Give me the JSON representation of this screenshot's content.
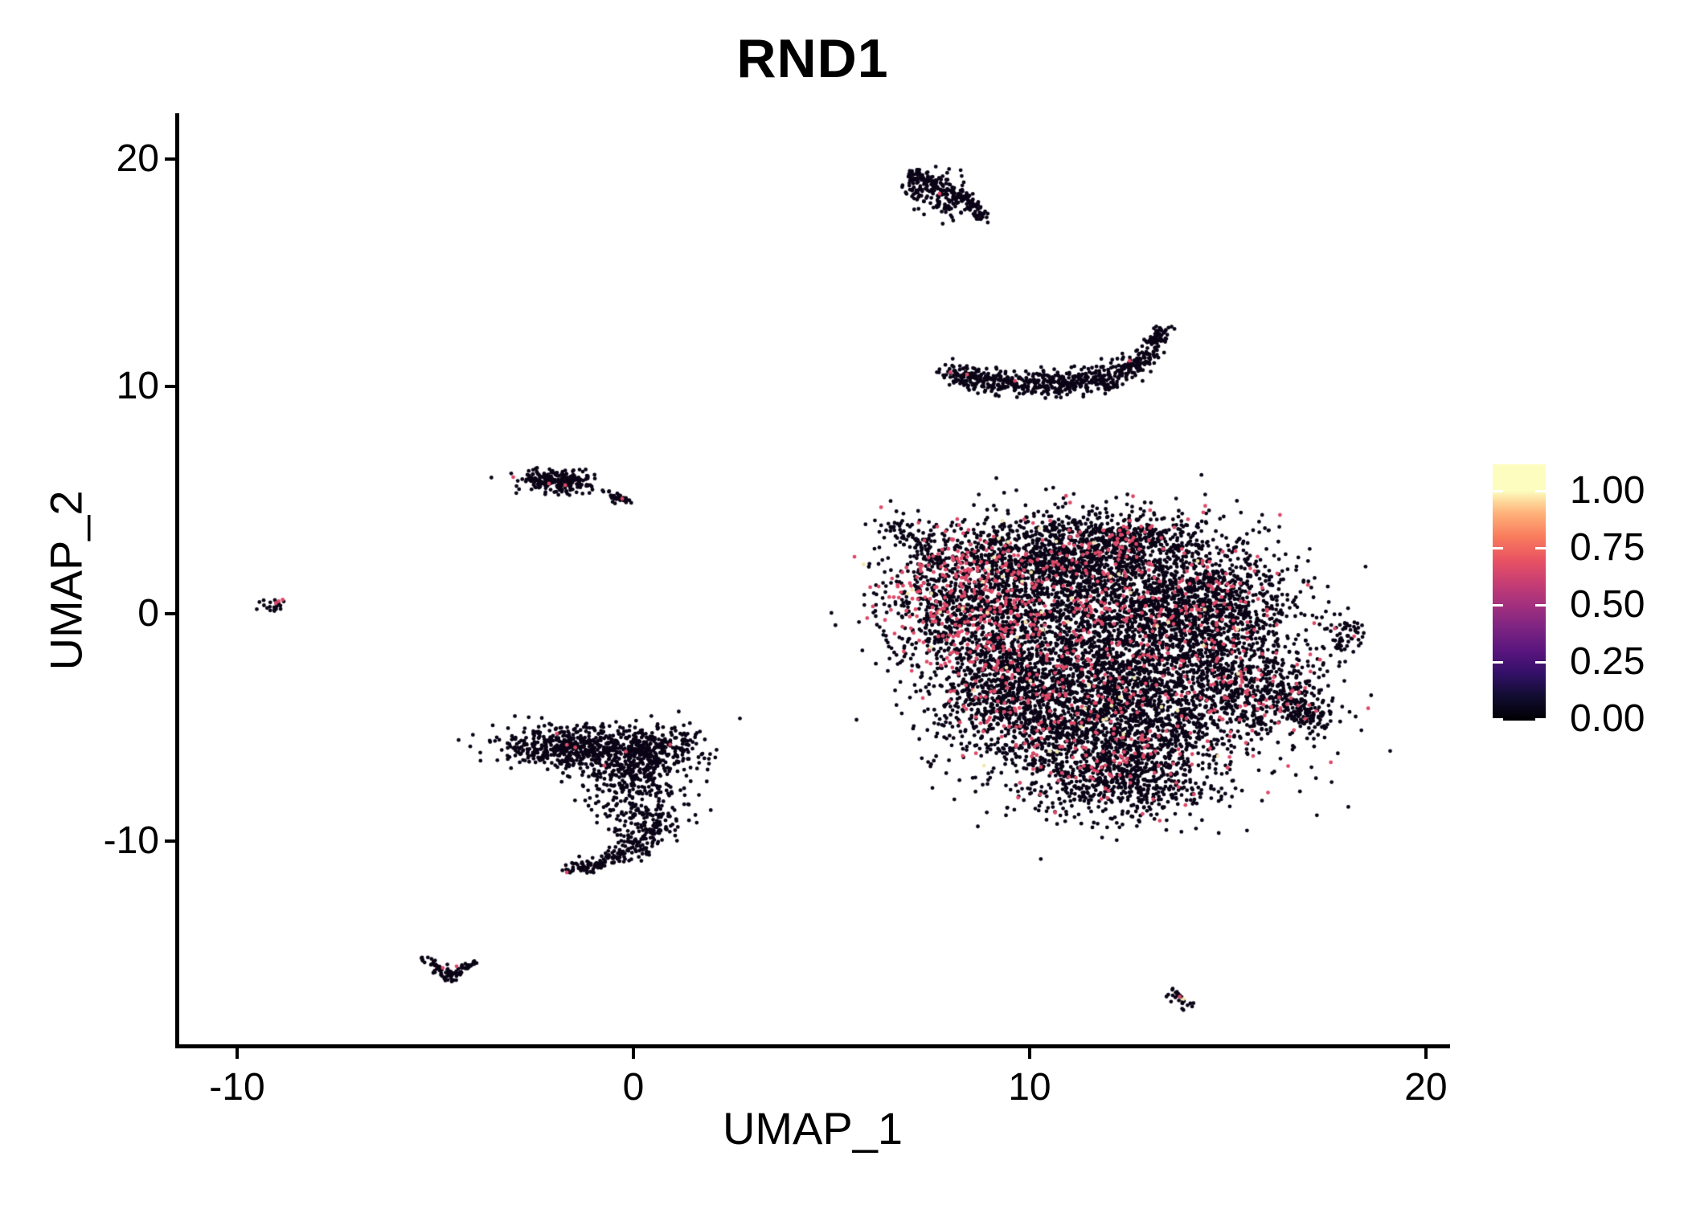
{
  "chart_data": {
    "type": "scatter",
    "title": "RND1",
    "xlabel": "UMAP_1",
    "ylabel": "UMAP_2",
    "xlim": [
      -11.48,
      20.53
    ],
    "ylim": [
      -19.05,
      21.95
    ],
    "x_ticks": [
      {
        "value": -10,
        "label": "-10"
      },
      {
        "value": 0,
        "label": "0"
      },
      {
        "value": 10,
        "label": "10"
      },
      {
        "value": 20,
        "label": "20"
      }
    ],
    "y_ticks": [
      {
        "value": -10,
        "label": "-10"
      },
      {
        "value": 0,
        "label": "0"
      },
      {
        "value": 10,
        "label": "10"
      },
      {
        "value": 20,
        "label": "20"
      }
    ],
    "legend": {
      "bar_value_range": [
        -0.007,
        1.117
      ],
      "ticks": [
        {
          "value": 1.0,
          "label": "1.00"
        },
        {
          "value": 0.75,
          "label": "0.75"
        },
        {
          "value": 0.5,
          "label": "0.50"
        },
        {
          "value": 0.25,
          "label": "0.25"
        },
        {
          "value": 0.0,
          "label": "0.00"
        }
      ],
      "gradient_stops": [
        {
          "value": 0.0,
          "color": "#000004"
        },
        {
          "value": 0.1,
          "color": "#120D31"
        },
        {
          "value": 0.2,
          "color": "#331068"
        },
        {
          "value": 0.3,
          "color": "#5A167E"
        },
        {
          "value": 0.4,
          "color": "#7D2482"
        },
        {
          "value": 0.5,
          "color": "#A3307E"
        },
        {
          "value": 0.6,
          "color": "#C83E73"
        },
        {
          "value": 0.7,
          "color": "#E95462"
        },
        {
          "value": 0.8,
          "color": "#F97C5D"
        },
        {
          "value": 0.9,
          "color": "#FEB078"
        },
        {
          "value": 0.96,
          "color": "#FDDC9E"
        },
        {
          "value": 1.0,
          "color": "#FCFDBF"
        },
        {
          "value": 1.117,
          "color": "#FCFDBF"
        }
      ],
      "tick_dash_color": "#FFFFFF"
    },
    "point_radius": 2.4,
    "point_colors": {
      "low": "#0A0416",
      "mid": "#DE4968",
      "high": "#F2E7AE"
    },
    "seed": 42,
    "clusters": [
      {
        "name": "top-small-cluster",
        "components": [
          {
            "type": "blob",
            "cx": 7.5,
            "cy": 18.75,
            "sx": 0.38,
            "sy": 0.42,
            "n": 110,
            "red": 0.005,
            "cream": 0
          },
          {
            "type": "blob",
            "cx": 7.95,
            "cy": 18.2,
            "sx": 0.28,
            "sy": 0.35,
            "n": 70,
            "red": 0.01,
            "cream": 0
          },
          {
            "type": "blob",
            "cx": 7.15,
            "cy": 19.25,
            "sx": 0.18,
            "sy": 0.18,
            "n": 30,
            "red": 0,
            "cream": 0
          },
          {
            "type": "strip",
            "x1": 8.2,
            "y1": 18.6,
            "x2": 8.85,
            "y2": 17.35,
            "sig": 0.11,
            "n": 70,
            "red": 0,
            "cream": 0
          }
        ]
      },
      {
        "name": "crescent-cluster",
        "components": [
          {
            "type": "strip",
            "x1": 8.0,
            "y1": 10.45,
            "x2": 10.2,
            "y2": 10.05,
            "sig": 0.26,
            "n": 250,
            "red": 0.004,
            "cream": 0
          },
          {
            "type": "strip",
            "x1": 10.2,
            "y1": 10.05,
            "x2": 12.0,
            "y2": 10.3,
            "sig": 0.28,
            "n": 230,
            "red": 0.004,
            "cream": 0
          },
          {
            "type": "strip",
            "x1": 12.0,
            "y1": 10.3,
            "x2": 12.9,
            "y2": 11.2,
            "sig": 0.22,
            "n": 120,
            "red": 0,
            "cream": 0
          },
          {
            "type": "strip",
            "x1": 12.9,
            "y1": 11.2,
            "x2": 13.35,
            "y2": 12.65,
            "sig": 0.16,
            "n": 90,
            "red": 0,
            "cream": 0
          }
        ]
      },
      {
        "name": "main-cluster",
        "components": [
          {
            "type": "strip",
            "x1": 6.4,
            "y1": 4.05,
            "x2": 7.9,
            "y2": 2.45,
            "sig": 0.26,
            "n": 90,
            "red": 0.01,
            "cream": 0
          },
          {
            "type": "blob",
            "cx": 8.35,
            "cy": 0.4,
            "sx": 1.05,
            "sy": 1.45,
            "n": 900,
            "red": 0.28,
            "cream": 0.012
          },
          {
            "type": "blob",
            "cx": 10.8,
            "cy": 2.4,
            "sx": 1.5,
            "sy": 1.05,
            "n": 1300,
            "red": 0.08,
            "cream": 0.006
          },
          {
            "type": "blob",
            "cx": 12.6,
            "cy": 3.5,
            "sx": 0.8,
            "sy": 0.5,
            "n": 240,
            "red": 0.05,
            "cream": 0
          },
          {
            "type": "blob",
            "cx": 11.5,
            "cy": -1.2,
            "sx": 1.95,
            "sy": 1.85,
            "n": 2250,
            "red": 0.09,
            "cream": 0.007
          },
          {
            "type": "blob",
            "cx": 14.3,
            "cy": 0.2,
            "sx": 1.25,
            "sy": 1.65,
            "n": 1350,
            "red": 0.07,
            "cream": 0.004
          },
          {
            "type": "blob",
            "cx": 9.4,
            "cy": -3.4,
            "sx": 0.9,
            "sy": 1.2,
            "n": 500,
            "red": 0.12,
            "cream": 0
          },
          {
            "type": "blob",
            "cx": 12.0,
            "cy": -5.0,
            "sx": 1.9,
            "sy": 1.5,
            "n": 1850,
            "red": 0.09,
            "cream": 0.004
          },
          {
            "type": "blob",
            "cx": 15.7,
            "cy": -3.3,
            "sx": 1.05,
            "sy": 1.05,
            "n": 480,
            "red": 0.1,
            "cream": 0
          },
          {
            "type": "strip",
            "x1": 16.5,
            "y1": -3.5,
            "x2": 17.25,
            "y2": -4.9,
            "sig": 0.28,
            "n": 130,
            "red": 0.12,
            "cream": 0
          },
          {
            "type": "blob",
            "cx": 12.3,
            "cy": -7.5,
            "sx": 1.15,
            "sy": 0.75,
            "n": 420,
            "red": 0.06,
            "cream": 0
          }
        ]
      },
      {
        "name": "far-right-small-cluster",
        "components": [
          {
            "type": "blob",
            "cx": 18.0,
            "cy": -0.75,
            "sx": 0.28,
            "sy": 0.3,
            "n": 40,
            "red": 0.02,
            "cream": 0
          },
          {
            "type": "strip",
            "x1": 17.85,
            "y1": -1.1,
            "x2": 17.8,
            "y2": -1.75,
            "sig": 0.08,
            "n": 14,
            "red": 0,
            "cream": 0
          }
        ]
      },
      {
        "name": "bottom-right-streak",
        "components": [
          {
            "type": "strip",
            "x1": 13.5,
            "y1": -16.55,
            "x2": 14.1,
            "y2": -17.3,
            "sig": 0.09,
            "n": 24,
            "red": 0,
            "cream": 0
          }
        ]
      },
      {
        "name": "far-left-small-cluster",
        "components": [
          {
            "type": "blob",
            "cx": -9.1,
            "cy": 0.35,
            "sx": 0.2,
            "sy": 0.17,
            "n": 20,
            "red": 0.05,
            "cream": 0
          }
        ]
      },
      {
        "name": "left-elongated-cluster",
        "components": [
          {
            "type": "blob",
            "cx": -1.95,
            "cy": 5.8,
            "sx": 0.5,
            "sy": 0.26,
            "n": 180,
            "red": 0.005,
            "cream": 0
          },
          {
            "type": "blob",
            "cx": -2.3,
            "cy": 6.0,
            "sx": 0.25,
            "sy": 0.2,
            "n": 50,
            "red": 0,
            "cream": 0
          },
          {
            "type": "strip",
            "x1": -0.55,
            "y1": 5.18,
            "x2": -0.18,
            "y2": 4.98,
            "sig": 0.09,
            "n": 40,
            "red": 0,
            "cream": 0
          },
          {
            "type": "blob",
            "cx": -0.73,
            "cy": 5.34,
            "sx": 0.05,
            "sy": 0.05,
            "n": 4,
            "red": 0,
            "cream": 0
          }
        ]
      },
      {
        "name": "center-hook-cluster",
        "components": [
          {
            "type": "blob",
            "cx": -1.6,
            "cy": -5.85,
            "sx": 0.9,
            "sy": 0.48,
            "n": 500,
            "red": 0.004,
            "cream": 0
          },
          {
            "type": "blob",
            "cx": 0.35,
            "cy": -6.0,
            "sx": 0.72,
            "sy": 0.5,
            "n": 360,
            "red": 0.004,
            "cream": 0
          },
          {
            "type": "blob",
            "cx": -0.1,
            "cy": -7.1,
            "sx": 0.55,
            "sy": 0.5,
            "n": 160,
            "red": 0,
            "cream": 0
          },
          {
            "type": "blob",
            "cx": 0.15,
            "cy": -8.3,
            "sx": 0.7,
            "sy": 0.75,
            "n": 180,
            "red": 0,
            "cream": 0
          },
          {
            "type": "strip",
            "x1": 0.7,
            "y1": -9.3,
            "x2": -0.4,
            "y2": -10.7,
            "sig": 0.26,
            "n": 130,
            "red": 0,
            "cream": 0
          },
          {
            "type": "strip",
            "x1": -0.4,
            "y1": -10.7,
            "x2": -1.65,
            "y2": -11.35,
            "sig": 0.16,
            "n": 80,
            "red": 0,
            "cream": 0
          }
        ]
      },
      {
        "name": "bottom-left-v-cluster",
        "components": [
          {
            "type": "strip",
            "x1": -5.3,
            "y1": -15.15,
            "x2": -4.62,
            "y2": -16.0,
            "sig": 0.11,
            "n": 45,
            "red": 0,
            "cream": 0
          },
          {
            "type": "strip",
            "x1": -4.62,
            "y1": -16.0,
            "x2": -3.98,
            "y2": -15.25,
            "sig": 0.1,
            "n": 40,
            "red": 0,
            "cream": 0
          }
        ]
      }
    ],
    "extra_points": [
      {
        "x": 7.73,
        "y": 18.48,
        "level": "mid"
      },
      {
        "x": 8.42,
        "y": 10.53,
        "level": "mid"
      },
      {
        "x": 12.52,
        "y": 11.13,
        "level": "mid"
      },
      {
        "x": 18.19,
        "y": -0.99,
        "level": "mid"
      },
      {
        "x": 13.79,
        "y": -16.85,
        "level": "mid"
      },
      {
        "x": 13.88,
        "y": -16.95,
        "level": "high"
      },
      {
        "x": -8.95,
        "y": 0.55,
        "level": "mid"
      },
      {
        "x": -8.85,
        "y": 0.62,
        "level": "mid"
      },
      {
        "x": -9.02,
        "y": 0.47,
        "level": "mid"
      },
      {
        "x": -2.13,
        "y": 5.73,
        "level": "mid"
      },
      {
        "x": -1.72,
        "y": 5.66,
        "level": "mid"
      },
      {
        "x": -0.28,
        "y": 5.06,
        "level": "mid"
      },
      {
        "x": -1.93,
        "y": -5.27,
        "level": "mid"
      },
      {
        "x": -0.73,
        "y": -6.68,
        "level": "mid"
      },
      {
        "x": 0.93,
        "y": -5.76,
        "level": "mid"
      },
      {
        "x": -1.68,
        "y": -11.38,
        "level": "mid"
      },
      {
        "x": -4.81,
        "y": -15.58,
        "level": "mid"
      },
      {
        "x": -4.46,
        "y": -15.51,
        "level": "mid"
      }
    ]
  }
}
